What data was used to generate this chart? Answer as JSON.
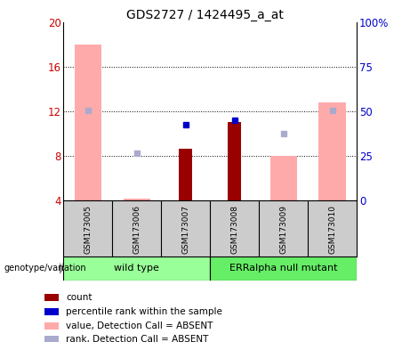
{
  "title": "GDS2727 / 1424495_a_at",
  "samples": [
    "GSM173005",
    "GSM173006",
    "GSM173007",
    "GSM173008",
    "GSM173009",
    "GSM173010"
  ],
  "ylim_left": [
    4,
    20
  ],
  "ylim_right": [
    0,
    100
  ],
  "yticks_left": [
    4,
    8,
    12,
    16,
    20
  ],
  "yticks_right": [
    0,
    25,
    50,
    75,
    100
  ],
  "bar_bottom": 4,
  "value_absent": [
    18.0,
    4.1,
    null,
    null,
    8.0,
    12.8
  ],
  "count": [
    null,
    null,
    8.6,
    11.0,
    null,
    null
  ],
  "percentile_rank": [
    null,
    null,
    10.8,
    11.2,
    null,
    null
  ],
  "rank_absent": [
    12.1,
    8.2,
    null,
    null,
    10.0,
    12.1
  ],
  "colors": {
    "count": "#990000",
    "percentile_rank": "#0000cc",
    "value_absent": "#ffaaaa",
    "rank_absent": "#aaaacc",
    "left_axis": "#cc0000",
    "right_axis": "#0000cc",
    "bg_plot": "#ffffff",
    "bg_sample": "#cccccc",
    "bg_wt": "#99ff99",
    "bg_mut": "#66ee66",
    "title": "#000000"
  },
  "group_labels": [
    "wild type",
    "ERRalpha null mutant"
  ],
  "legend": [
    [
      "count",
      "#990000"
    ],
    [
      "percentile rank within the sample",
      "#0000cc"
    ],
    [
      "value, Detection Call = ABSENT",
      "#ffaaaa"
    ],
    [
      "rank, Detection Call = ABSENT",
      "#aaaacc"
    ]
  ],
  "grid_yticks": [
    8,
    12,
    16
  ]
}
